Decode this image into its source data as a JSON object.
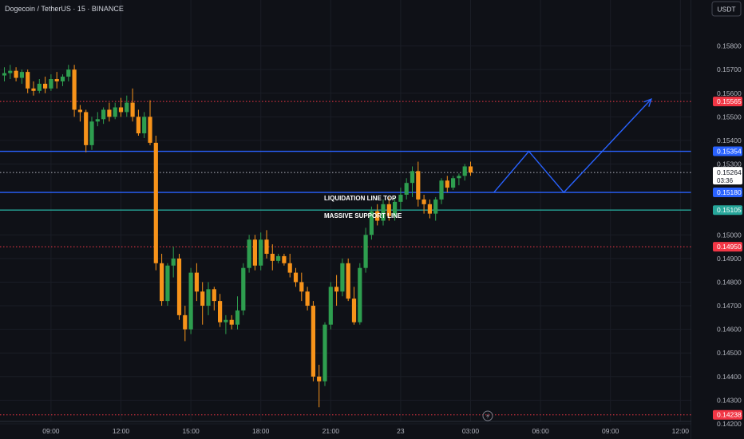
{
  "header": {
    "symbol_line": "Dogecoin / TetherUS · 15 · BINANCE",
    "currency_button": "USDT"
  },
  "colors": {
    "background": "#0f1117",
    "bull": "#2e9e4f",
    "bear": "#f7931a",
    "blue_line": "#2962ff",
    "teal_line": "#26a69a",
    "red_dotted": "#f23645",
    "grid": "#1a1d26",
    "text": "#b2b5be"
  },
  "chart_data": {
    "type": "candlestick",
    "y_axis": {
      "min": 0.1421,
      "max": 0.159,
      "ticks": [
        "0.15800",
        "0.15700",
        "0.15600",
        "0.15500",
        "0.15400",
        "0.15300",
        "0.15000",
        "0.14900",
        "0.14800",
        "0.14700",
        "0.14600",
        "0.14500",
        "0.14400",
        "0.14300",
        "0.14200"
      ],
      "tick_values": [
        0.158,
        0.157,
        0.156,
        0.155,
        0.154,
        0.153,
        0.15,
        0.149,
        0.148,
        0.147,
        0.146,
        0.145,
        0.144,
        0.143,
        0.142
      ]
    },
    "x_axis": {
      "labels": [
        "09:00",
        "12:00",
        "15:00",
        "18:00",
        "21:00",
        "23",
        "03:00",
        "06:00",
        "09:00",
        "12:00"
      ],
      "label_index": [
        8,
        20,
        32,
        44,
        56,
        68,
        80,
        92,
        104,
        116
      ]
    },
    "candles": [
      [
        0.15675,
        0.1571,
        0.1565,
        0.15685
      ],
      [
        0.15685,
        0.1572,
        0.1566,
        0.15695
      ],
      [
        0.15695,
        0.1571,
        0.1565,
        0.15665
      ],
      [
        0.15665,
        0.157,
        0.1564,
        0.1569
      ],
      [
        0.1569,
        0.157,
        0.156,
        0.1562
      ],
      [
        0.1562,
        0.1565,
        0.1559,
        0.1561
      ],
      [
        0.1561,
        0.1566,
        0.156,
        0.1564
      ],
      [
        0.1564,
        0.1567,
        0.156,
        0.1562
      ],
      [
        0.1562,
        0.1568,
        0.1561,
        0.1566
      ],
      [
        0.1566,
        0.1569,
        0.1562,
        0.1565
      ],
      [
        0.1565,
        0.1568,
        0.1563,
        0.1567
      ],
      [
        0.1567,
        0.1572,
        0.1565,
        0.157
      ],
      [
        0.157,
        0.1572,
        0.155,
        0.1553
      ],
      [
        0.1553,
        0.1555,
        0.1548,
        0.1552
      ],
      [
        0.1552,
        0.1553,
        0.1535,
        0.1538
      ],
      [
        0.1538,
        0.155,
        0.1536,
        0.1548
      ],
      [
        0.1548,
        0.1552,
        0.1546,
        0.1549
      ],
      [
        0.1549,
        0.1554,
        0.1547,
        0.1553
      ],
      [
        0.1553,
        0.1556,
        0.1548,
        0.155
      ],
      [
        0.155,
        0.1556,
        0.1549,
        0.1554
      ],
      [
        0.1554,
        0.1558,
        0.155,
        0.1552
      ],
      [
        0.1552,
        0.1559,
        0.155,
        0.1556
      ],
      [
        0.1556,
        0.1562,
        0.1548,
        0.155
      ],
      [
        0.155,
        0.1553,
        0.1542,
        0.1543
      ],
      [
        0.1543,
        0.1552,
        0.1541,
        0.155
      ],
      [
        0.155,
        0.1557,
        0.1538,
        0.1539
      ],
      [
        0.1539,
        0.1542,
        0.1485,
        0.1488
      ],
      [
        0.1488,
        0.1492,
        0.147,
        0.1472
      ],
      [
        0.1472,
        0.1488,
        0.147,
        0.1487
      ],
      [
        0.1487,
        0.1495,
        0.1482,
        0.149
      ],
      [
        0.149,
        0.1492,
        0.1464,
        0.1466
      ],
      [
        0.1466,
        0.147,
        0.1455,
        0.146
      ],
      [
        0.146,
        0.1486,
        0.1458,
        0.1484
      ],
      [
        0.1484,
        0.1488,
        0.1472,
        0.1476
      ],
      [
        0.1476,
        0.148,
        0.1462,
        0.147
      ],
      [
        0.147,
        0.148,
        0.1466,
        0.1477
      ],
      [
        0.1477,
        0.1478,
        0.1468,
        0.1472
      ],
      [
        0.1472,
        0.1475,
        0.1461,
        0.1463
      ],
      [
        0.1463,
        0.1466,
        0.1458,
        0.1464
      ],
      [
        0.1464,
        0.1466,
        0.146,
        0.1462
      ],
      [
        0.1462,
        0.1474,
        0.146,
        0.1468
      ],
      [
        0.1468,
        0.1488,
        0.1466,
        0.1486
      ],
      [
        0.1486,
        0.15,
        0.1484,
        0.1498
      ],
      [
        0.1498,
        0.15,
        0.1485,
        0.1487
      ],
      [
        0.1487,
        0.1501,
        0.1485,
        0.1498
      ],
      [
        0.1498,
        0.1502,
        0.149,
        0.1492
      ],
      [
        0.1492,
        0.1496,
        0.1485,
        0.1489
      ],
      [
        0.1489,
        0.1492,
        0.1488,
        0.1491
      ],
      [
        0.1491,
        0.1492,
        0.1487,
        0.1488
      ],
      [
        0.1488,
        0.1492,
        0.1482,
        0.1484
      ],
      [
        0.1484,
        0.1486,
        0.1478,
        0.148
      ],
      [
        0.148,
        0.1484,
        0.1472,
        0.1476
      ],
      [
        0.1476,
        0.1478,
        0.1468,
        0.147
      ],
      [
        0.147,
        0.1472,
        0.1438,
        0.144
      ],
      [
        0.144,
        0.1445,
        0.1427,
        0.1438
      ],
      [
        0.1438,
        0.1463,
        0.1436,
        0.1462
      ],
      [
        0.1462,
        0.148,
        0.146,
        0.1478
      ],
      [
        0.1478,
        0.1483,
        0.147,
        0.1476
      ],
      [
        0.1476,
        0.149,
        0.1474,
        0.1488
      ],
      [
        0.1488,
        0.149,
        0.1472,
        0.1473
      ],
      [
        0.1473,
        0.1478,
        0.1462,
        0.1463
      ],
      [
        0.1463,
        0.1488,
        0.1462,
        0.1486
      ],
      [
        0.1486,
        0.1503,
        0.1484,
        0.15
      ],
      [
        0.15,
        0.1512,
        0.1498,
        0.151
      ],
      [
        0.151,
        0.1513,
        0.1504,
        0.1506
      ],
      [
        0.1506,
        0.1515,
        0.1504,
        0.1513
      ],
      [
        0.1513,
        0.1516,
        0.1506,
        0.1508
      ],
      [
        0.1508,
        0.1516,
        0.1506,
        0.1514
      ],
      [
        0.1514,
        0.152,
        0.151,
        0.1517
      ],
      [
        0.1517,
        0.1524,
        0.1515,
        0.1522
      ],
      [
        0.1522,
        0.1529,
        0.1516,
        0.1527
      ],
      [
        0.1527,
        0.1531,
        0.1512,
        0.1515
      ],
      [
        0.1515,
        0.1517,
        0.1509,
        0.1513
      ],
      [
        0.1513,
        0.1515,
        0.1507,
        0.1509
      ],
      [
        0.1509,
        0.1516,
        0.1506,
        0.1515
      ],
      [
        0.1515,
        0.1524,
        0.1513,
        0.1523
      ],
      [
        0.1523,
        0.1525,
        0.1518,
        0.152
      ],
      [
        0.152,
        0.1525,
        0.1519,
        0.1524
      ],
      [
        0.1524,
        0.1526,
        0.1521,
        0.1525
      ],
      [
        0.1525,
        0.153,
        0.1523,
        0.1529
      ],
      [
        0.1529,
        0.1531,
        0.1525,
        0.15264
      ]
    ],
    "horizontal_lines": [
      {
        "price": 0.15565,
        "style": "dotted",
        "color": "#f23645",
        "label": "0.15565"
      },
      {
        "price": 0.15354,
        "style": "solid",
        "color": "#2962ff",
        "label": "0.15354"
      },
      {
        "price": 0.15264,
        "style": "dotted",
        "color": "#b2b5be",
        "label": "0.15264"
      },
      {
        "price": 0.1518,
        "style": "solid",
        "color": "#2962ff",
        "label": "0.15180"
      },
      {
        "price": 0.15105,
        "style": "solid",
        "color": "#26a69a",
        "label": "0.15105"
      },
      {
        "price": 0.1495,
        "style": "dotted",
        "color": "#f23645",
        "label": "0.14950"
      },
      {
        "price": 0.14238,
        "style": "dotted",
        "color": "#f23645",
        "label": "0.14238"
      }
    ],
    "annotations": [
      {
        "text": "LIQUIDATION LINE TOP",
        "price": 0.1518
      },
      {
        "text": "MASSIVE SUPPORT LINE",
        "price": 0.15105
      }
    ],
    "current_price": {
      "value": "0.15264",
      "countdown": "03:36"
    },
    "projection_path": [
      [
        84,
        0.1518
      ],
      [
        90,
        0.15354
      ],
      [
        96,
        0.1518
      ],
      [
        111,
        0.15575
      ]
    ]
  }
}
